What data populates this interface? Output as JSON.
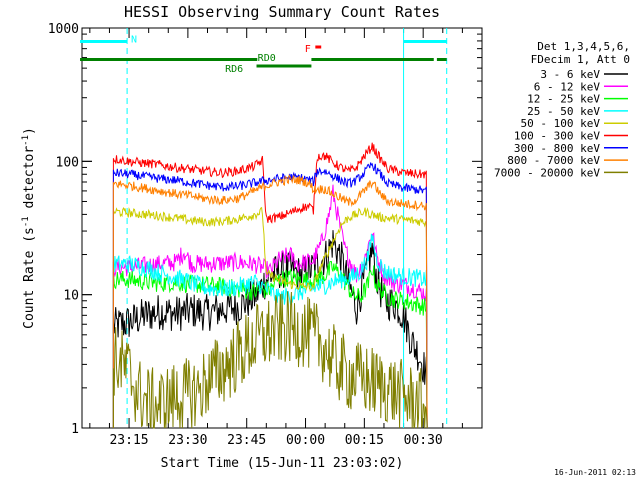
{
  "chart_data": {
    "type": "line",
    "title": "HESSI Observing Summary Count Rates",
    "xlabel": "Start Time (15-Jun-11 23:03:02)",
    "ylabel_main": "Count Rate (s",
    "ylabel_sup1": "-1",
    "ylabel_mid": " detector",
    "ylabel_sup2": "-1",
    "ylabel_end": ")",
    "footer": "16-Jun-2011 02:13",
    "x_unit": "minutes after 23:03:02",
    "x_range": [
      0,
      102
    ],
    "y_scale": "log",
    "y_range": [
      1,
      1000
    ],
    "x_ticks": [
      {
        "label": "23:15",
        "value": 12
      },
      {
        "label": "23:30",
        "value": 27
      },
      {
        "label": "23:45",
        "value": 42
      },
      {
        "label": "00:00",
        "value": 57
      },
      {
        "label": "00:15",
        "value": 72
      },
      {
        "label": "00:30",
        "value": 87
      }
    ],
    "y_ticks": [
      {
        "label": "1",
        "value": 1
      },
      {
        "label": "10",
        "value": 10
      },
      {
        "label": "100",
        "value": 100
      },
      {
        "label": "1000",
        "value": 1000
      }
    ],
    "legend_header": [
      "Det 1,3,4,5,6,",
      "FDecim 1, Att 0"
    ],
    "legend_placement": "right",
    "series": [
      {
        "name": "3 - 6 keV",
        "color": "#000000",
        "points": [
          [
            8,
            5.8
          ],
          [
            12,
            6.2
          ],
          [
            16,
            7
          ],
          [
            20,
            7.5
          ],
          [
            24,
            7.2
          ],
          [
            28,
            7.6
          ],
          [
            32,
            7.3
          ],
          [
            36,
            7.8
          ],
          [
            40,
            8.2
          ],
          [
            44,
            9.6
          ],
          [
            47,
            13
          ],
          [
            50,
            15
          ],
          [
            53,
            15.5
          ],
          [
            56,
            14
          ],
          [
            59,
            16
          ],
          [
            62,
            19
          ],
          [
            64,
            25
          ],
          [
            66,
            19
          ],
          [
            68,
            12
          ],
          [
            70,
            8
          ],
          [
            72,
            13
          ],
          [
            74,
            22
          ],
          [
            75,
            14
          ],
          [
            77,
            9
          ],
          [
            80,
            8.5
          ],
          [
            82,
            7
          ],
          [
            84,
            4.5
          ],
          [
            86,
            3.5
          ],
          [
            88,
            2.5
          ]
        ]
      },
      {
        "name": "6 - 12 keV",
        "color": "#ff00ff",
        "points": [
          [
            8,
            16
          ],
          [
            12,
            16
          ],
          [
            16,
            16.5
          ],
          [
            20,
            17
          ],
          [
            24,
            17.5
          ],
          [
            26,
            21
          ],
          [
            28,
            17
          ],
          [
            32,
            17
          ],
          [
            36,
            17.2
          ],
          [
            40,
            17.5
          ],
          [
            44,
            17
          ],
          [
            48,
            15
          ],
          [
            50,
            18
          ],
          [
            53,
            20
          ],
          [
            55,
            17
          ],
          [
            57,
            17.5
          ],
          [
            59,
            18
          ],
          [
            61,
            24
          ],
          [
            63,
            40
          ],
          [
            64,
            58
          ],
          [
            65,
            42
          ],
          [
            67,
            22
          ],
          [
            70,
            14
          ],
          [
            72,
            18
          ],
          [
            74,
            30
          ],
          [
            75,
            20
          ],
          [
            77,
            14
          ],
          [
            80,
            12
          ],
          [
            82,
            12
          ],
          [
            85,
            11
          ],
          [
            88,
            10
          ]
        ]
      },
      {
        "name": "12 - 25 keV",
        "color": "#00ff00",
        "points": [
          [
            8,
            13
          ],
          [
            12,
            13
          ],
          [
            16,
            12.5
          ],
          [
            20,
            12.2
          ],
          [
            24,
            12.4
          ],
          [
            28,
            12
          ],
          [
            32,
            11.8
          ],
          [
            36,
            11.5
          ],
          [
            40,
            11
          ],
          [
            44,
            10.5
          ],
          [
            48,
            11
          ],
          [
            50,
            13
          ],
          [
            53,
            13.5
          ],
          [
            56,
            12.8
          ],
          [
            59,
            13
          ],
          [
            62,
            14
          ],
          [
            64,
            16
          ],
          [
            66,
            14
          ],
          [
            69,
            10
          ],
          [
            71,
            9.5
          ],
          [
            73,
            12
          ],
          [
            74,
            16
          ],
          [
            75,
            12
          ],
          [
            78,
            9.5
          ],
          [
            82,
            9
          ],
          [
            85,
            8.5
          ],
          [
            88,
            8
          ]
        ]
      },
      {
        "name": "25 - 50 keV",
        "color": "#00ffff",
        "points": [
          [
            8,
            17
          ],
          [
            12,
            17
          ],
          [
            16,
            16
          ],
          [
            20,
            14.5
          ],
          [
            24,
            13.5
          ],
          [
            28,
            12.2
          ],
          [
            32,
            11.2
          ],
          [
            36,
            11
          ],
          [
            40,
            11.5
          ],
          [
            44,
            12.5
          ],
          [
            47,
            11
          ],
          [
            50,
            9.5
          ],
          [
            53,
            9.8
          ],
          [
            56,
            10.5
          ],
          [
            59,
            11.2
          ],
          [
            62,
            11.8
          ],
          [
            64,
            12.5
          ],
          [
            66,
            13
          ],
          [
            69,
            13.5
          ],
          [
            71,
            15
          ],
          [
            73,
            19
          ],
          [
            74,
            28
          ],
          [
            75,
            19
          ],
          [
            77,
            15
          ],
          [
            80,
            14
          ],
          [
            84,
            13.5
          ],
          [
            88,
            13
          ]
        ]
      },
      {
        "name": "50 - 100 keV",
        "color": "#cccc00",
        "points": [
          [
            8,
            42
          ],
          [
            12,
            41
          ],
          [
            16,
            40
          ],
          [
            20,
            39
          ],
          [
            24,
            37.5
          ],
          [
            28,
            36
          ],
          [
            32,
            35
          ],
          [
            36,
            35.5
          ],
          [
            40,
            37
          ],
          [
            44,
            40
          ],
          [
            46,
            42
          ],
          [
            47,
            14
          ],
          [
            48,
            14
          ],
          [
            50,
            13
          ],
          [
            53,
            12
          ],
          [
            56,
            11.5
          ],
          [
            58,
            11.5
          ],
          [
            59,
            11
          ],
          [
            60,
            14
          ],
          [
            62,
            19
          ],
          [
            64,
            25
          ],
          [
            66,
            33
          ],
          [
            68,
            38
          ],
          [
            70,
            40
          ],
          [
            72,
            42
          ],
          [
            74,
            40
          ],
          [
            76,
            38
          ],
          [
            80,
            37
          ],
          [
            84,
            36
          ],
          [
            88,
            35
          ]
        ]
      },
      {
        "name": "100 - 300 keV",
        "color": "#ff0000",
        "points": [
          [
            8,
            105
          ],
          [
            12,
            100
          ],
          [
            16,
            97
          ],
          [
            20,
            94
          ],
          [
            24,
            90
          ],
          [
            28,
            87
          ],
          [
            32,
            84
          ],
          [
            36,
            82
          ],
          [
            40,
            85
          ],
          [
            44,
            92
          ],
          [
            46,
            102
          ],
          [
            47,
            37
          ],
          [
            50,
            38
          ],
          [
            53,
            41
          ],
          [
            56,
            45
          ],
          [
            58,
            46
          ],
          [
            59,
            43
          ],
          [
            60,
            110
          ],
          [
            62,
            110
          ],
          [
            64,
            98
          ],
          [
            66,
            90
          ],
          [
            68,
            84
          ],
          [
            70,
            90
          ],
          [
            72,
            110
          ],
          [
            74,
            130
          ],
          [
            76,
            105
          ],
          [
            78,
            88
          ],
          [
            82,
            82
          ],
          [
            86,
            80
          ],
          [
            88,
            80
          ]
        ]
      },
      {
        "name": "300 - 800 keV",
        "color": "#0000ff",
        "points": [
          [
            8,
            82
          ],
          [
            12,
            80
          ],
          [
            16,
            77
          ],
          [
            20,
            74
          ],
          [
            24,
            72
          ],
          [
            28,
            69
          ],
          [
            32,
            66
          ],
          [
            36,
            64
          ],
          [
            40,
            65
          ],
          [
            44,
            69
          ],
          [
            47,
            72
          ],
          [
            50,
            74
          ],
          [
            53,
            76
          ],
          [
            56,
            75
          ],
          [
            58,
            72
          ],
          [
            59,
            70
          ],
          [
            60,
            85
          ],
          [
            62,
            84
          ],
          [
            64,
            78
          ],
          [
            66,
            72
          ],
          [
            68,
            68
          ],
          [
            70,
            72
          ],
          [
            72,
            82
          ],
          [
            74,
            95
          ],
          [
            76,
            80
          ],
          [
            78,
            68
          ],
          [
            82,
            63
          ],
          [
            86,
            61
          ],
          [
            88,
            60
          ]
        ]
      },
      {
        "name": "800 - 7000 keV",
        "color": "#ff8000",
        "points": [
          [
            8,
            68
          ],
          [
            12,
            66
          ],
          [
            16,
            63
          ],
          [
            20,
            60
          ],
          [
            24,
            57
          ],
          [
            28,
            55
          ],
          [
            32,
            52
          ],
          [
            36,
            51
          ],
          [
            40,
            53
          ],
          [
            44,
            60
          ],
          [
            47,
            66
          ],
          [
            50,
            70
          ],
          [
            53,
            73
          ],
          [
            56,
            72
          ],
          [
            58,
            68
          ],
          [
            59,
            62
          ],
          [
            60,
            62
          ],
          [
            62,
            62
          ],
          [
            64,
            57
          ],
          [
            66,
            53
          ],
          [
            68,
            49
          ],
          [
            70,
            52
          ],
          [
            72,
            60
          ],
          [
            74,
            70
          ],
          [
            76,
            57
          ],
          [
            78,
            50
          ],
          [
            82,
            48
          ],
          [
            86,
            47
          ],
          [
            88,
            46
          ]
        ]
      },
      {
        "name": "7000 - 20000 keV",
        "color": "#7f7f00",
        "points": [
          [
            8,
            3.2
          ],
          [
            10,
            3
          ],
          [
            12,
            2.6
          ],
          [
            14,
            1.9
          ],
          [
            16,
            1.6
          ],
          [
            18,
            1.5
          ],
          [
            20,
            1.5
          ],
          [
            24,
            1.7
          ],
          [
            28,
            1.8
          ],
          [
            30,
            1.9
          ],
          [
            32,
            2.3
          ],
          [
            36,
            2.8
          ],
          [
            40,
            3.5
          ],
          [
            44,
            4.5
          ],
          [
            48,
            5.2
          ],
          [
            52,
            5.6
          ],
          [
            56,
            5.4
          ],
          [
            60,
            4.6
          ],
          [
            62,
            4
          ],
          [
            64,
            3.2
          ],
          [
            66,
            2.8
          ],
          [
            68,
            2.5
          ],
          [
            70,
            2.4
          ],
          [
            72,
            2.3
          ],
          [
            74,
            2.2
          ],
          [
            78,
            2
          ],
          [
            82,
            1.7
          ],
          [
            86,
            1.5
          ],
          [
            88,
            1.4
          ]
        ]
      }
    ],
    "status_bars": [
      {
        "label": "N",
        "color": "#00ffff",
        "segments": [
          [
            -0.5,
            11.5
          ],
          [
            82,
            93
          ]
        ],
        "level": 1
      },
      {
        "label": "",
        "color": "#008000",
        "segments": [
          [
            -0.5,
            44.7
          ],
          [
            58.5,
            89.7
          ],
          [
            90.5,
            93
          ]
        ],
        "level": 2
      },
      {
        "label": "RD0",
        "color": "#008000",
        "segments": [
          [
            44.5,
            58.5
          ]
        ],
        "level": 3
      },
      {
        "label": "RD6",
        "color": "#008000",
        "level": 4
      },
      {
        "label": "F",
        "color": "#ff0000",
        "segments": [
          [
            59.5,
            61
          ]
        ],
        "level": 5
      }
    ],
    "vertical_markers": [
      {
        "color": "#00ffff",
        "style": "dashed",
        "x": 11.5
      },
      {
        "color": "#00ffff",
        "style": "solid",
        "x": 82
      },
      {
        "color": "#00ffff",
        "style": "dashed",
        "x": 93
      }
    ],
    "grid": false
  }
}
